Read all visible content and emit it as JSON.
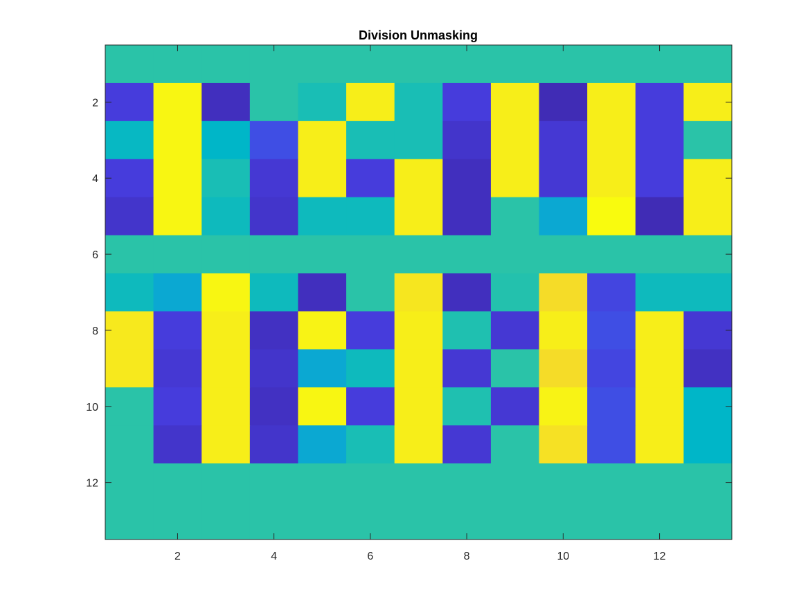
{
  "chart_data": {
    "type": "heatmap",
    "title": "Division Unmasking",
    "xlabel": "",
    "ylabel": "",
    "x_ticks": [
      2,
      4,
      6,
      8,
      10,
      12
    ],
    "y_ticks": [
      2,
      4,
      6,
      8,
      10,
      12
    ],
    "xlim": [
      0.5,
      13.5
    ],
    "ylim": [
      0.5,
      13.5
    ],
    "y_direction": "reverse",
    "colormap": "parula",
    "clim": [
      0,
      1
    ],
    "grid": false,
    "values": [
      [
        0.5,
        0.5,
        0.5,
        0.5,
        0.5,
        0.5,
        0.5,
        0.5,
        0.5,
        0.5,
        0.5,
        0.5,
        0.5
      ],
      [
        0.12,
        0.98,
        0.05,
        0.5,
        0.45,
        0.95,
        0.45,
        0.12,
        0.95,
        0.03,
        0.95,
        0.12,
        0.95
      ],
      [
        0.4,
        0.98,
        0.38,
        0.16,
        0.95,
        0.45,
        0.45,
        0.08,
        0.95,
        0.1,
        0.95,
        0.12,
        0.5
      ],
      [
        0.12,
        0.98,
        0.45,
        0.1,
        0.95,
        0.12,
        0.95,
        0.05,
        0.95,
        0.1,
        0.95,
        0.12,
        0.95
      ],
      [
        0.08,
        0.98,
        0.42,
        0.08,
        0.42,
        0.42,
        0.95,
        0.05,
        0.5,
        0.35,
        1.0,
        0.03,
        0.95
      ],
      [
        0.5,
        0.5,
        0.5,
        0.5,
        0.5,
        0.5,
        0.5,
        0.5,
        0.5,
        0.5,
        0.5,
        0.5,
        0.5
      ],
      [
        0.42,
        0.35,
        0.98,
        0.42,
        0.05,
        0.5,
        0.92,
        0.05,
        0.48,
        0.88,
        0.14,
        0.42,
        0.42
      ],
      [
        0.93,
        0.12,
        0.95,
        0.06,
        0.97,
        0.12,
        0.95,
        0.47,
        0.1,
        0.95,
        0.16,
        0.95,
        0.1
      ],
      [
        0.93,
        0.1,
        0.95,
        0.08,
        0.35,
        0.42,
        0.95,
        0.1,
        0.5,
        0.88,
        0.14,
        0.95,
        0.06
      ],
      [
        0.5,
        0.12,
        0.95,
        0.06,
        0.98,
        0.12,
        0.95,
        0.47,
        0.1,
        0.97,
        0.16,
        0.95,
        0.38
      ],
      [
        0.5,
        0.08,
        0.95,
        0.08,
        0.35,
        0.45,
        0.95,
        0.1,
        0.5,
        0.9,
        0.16,
        0.95,
        0.38
      ],
      [
        0.5,
        0.5,
        0.5,
        0.5,
        0.5,
        0.5,
        0.5,
        0.5,
        0.5,
        0.5,
        0.5,
        0.5,
        0.5
      ],
      [
        0.5,
        0.5,
        0.5,
        0.5,
        0.5,
        0.5,
        0.5,
        0.5,
        0.5,
        0.5,
        0.5,
        0.5,
        0.5
      ]
    ]
  }
}
